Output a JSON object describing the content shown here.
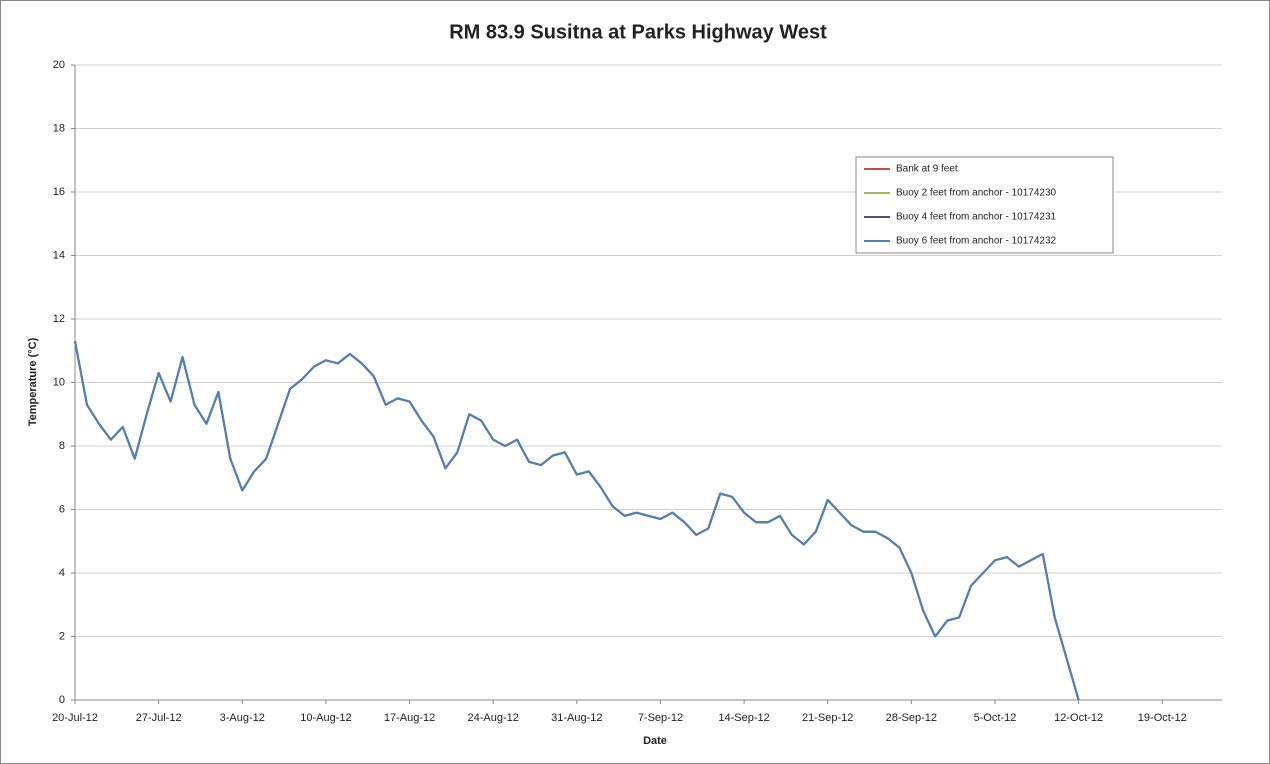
{
  "chart_data": {
    "type": "line",
    "title": "RM 83.9 Susitna at Parks Highway West",
    "xlabel": "Date",
    "ylabel": "Temperature (°C)",
    "x": [
      "2012-07-20",
      "2012-07-21",
      "2012-07-22",
      "2012-07-23",
      "2012-07-24",
      "2012-07-25",
      "2012-07-26",
      "2012-07-27",
      "2012-07-28",
      "2012-07-29",
      "2012-07-30",
      "2012-07-31",
      "2012-08-01",
      "2012-08-02",
      "2012-08-03",
      "2012-08-04",
      "2012-08-05",
      "2012-08-06",
      "2012-08-07",
      "2012-08-08",
      "2012-08-09",
      "2012-08-10",
      "2012-08-11",
      "2012-08-12",
      "2012-08-13",
      "2012-08-14",
      "2012-08-15",
      "2012-08-16",
      "2012-08-17",
      "2012-08-18",
      "2012-08-19",
      "2012-08-20",
      "2012-08-21",
      "2012-08-22",
      "2012-08-23",
      "2012-08-24",
      "2012-08-25",
      "2012-08-26",
      "2012-08-27",
      "2012-08-28",
      "2012-08-29",
      "2012-08-30",
      "2012-08-31",
      "2012-09-01",
      "2012-09-02",
      "2012-09-03",
      "2012-09-04",
      "2012-09-05",
      "2012-09-06",
      "2012-09-07",
      "2012-09-08",
      "2012-09-09",
      "2012-09-10",
      "2012-09-11",
      "2012-09-12",
      "2012-09-13",
      "2012-09-14",
      "2012-09-15",
      "2012-09-16",
      "2012-09-17",
      "2012-09-18",
      "2012-09-19",
      "2012-09-20",
      "2012-09-21",
      "2012-09-22",
      "2012-09-23",
      "2012-09-24",
      "2012-09-25",
      "2012-09-26",
      "2012-09-27",
      "2012-09-28",
      "2012-09-29",
      "2012-09-30",
      "2012-10-01",
      "2012-10-02",
      "2012-10-03",
      "2012-10-04",
      "2012-10-05",
      "2012-10-06",
      "2012-10-07",
      "2012-10-08",
      "2012-10-09",
      "2012-10-10",
      "2012-10-11",
      "2012-10-12"
    ],
    "series": [
      {
        "name": "Bank at 9 feet",
        "color": "#c0504d",
        "values": [
          11.3,
          9.3,
          8.7,
          8.2,
          8.6,
          7.6,
          9.0,
          10.3,
          9.4,
          10.8,
          9.3,
          8.7,
          9.7,
          7.6,
          6.6,
          7.2,
          7.6,
          8.7,
          9.8,
          10.1,
          10.5,
          10.7,
          10.6,
          10.9,
          10.6,
          10.2,
          9.3,
          9.5,
          9.4,
          8.8,
          8.3,
          7.3,
          7.8,
          9.0,
          8.8,
          8.2,
          8.0,
          8.2,
          7.5,
          7.4,
          7.7,
          7.8,
          7.1,
          7.2,
          6.7,
          6.1,
          5.8,
          5.9,
          5.8,
          5.7,
          5.9,
          5.6,
          5.2,
          5.4,
          6.5,
          6.4,
          5.9,
          5.6,
          5.6,
          5.8,
          5.2,
          4.9,
          5.3,
          6.3,
          5.9,
          5.5,
          5.3,
          5.3,
          5.1,
          4.8,
          4.0,
          2.8,
          2.0,
          2.5,
          2.6,
          3.6,
          4.0,
          4.4,
          4.5,
          4.2,
          4.4,
          4.6,
          2.6,
          1.3,
          0.0
        ]
      },
      {
        "name": "Buoy 2 feet from anchor - 10174230",
        "color": "#9bbb59",
        "values": [
          11.3,
          9.3,
          8.7,
          8.2,
          8.6,
          7.6,
          9.0,
          10.3,
          9.4,
          10.8,
          9.3,
          8.7,
          9.7,
          7.6,
          6.6,
          7.2,
          7.6,
          8.7,
          9.8,
          10.1,
          10.5,
          10.7,
          10.6,
          10.9,
          10.6,
          10.2,
          9.3,
          9.5,
          9.4,
          8.8,
          8.3,
          7.3,
          7.8,
          9.0,
          8.8,
          8.2,
          8.0,
          8.2,
          7.5,
          7.4,
          7.7,
          7.8,
          7.1,
          7.2,
          6.7,
          6.1,
          5.8,
          5.9,
          5.8,
          5.7,
          5.9,
          5.6,
          5.2,
          5.4,
          6.5,
          6.4,
          5.9,
          5.6,
          5.6,
          5.8,
          5.2,
          4.9,
          5.3,
          6.3,
          5.9,
          5.5,
          5.3,
          5.3,
          5.1,
          4.8,
          4.0,
          2.8,
          2.0,
          2.5,
          2.6,
          3.6,
          4.0,
          4.4,
          4.5,
          4.2,
          4.4,
          4.6,
          2.6,
          1.3,
          0.0
        ]
      },
      {
        "name": "Buoy 4 feet from anchor - 10174231",
        "color": "#5b4b78",
        "values": [
          11.3,
          9.3,
          8.7,
          8.2,
          8.6,
          7.6,
          9.0,
          10.3,
          9.4,
          10.8,
          9.3,
          8.7,
          9.7,
          7.6,
          6.6,
          7.2,
          7.6,
          8.7,
          9.8,
          10.1,
          10.5,
          10.7,
          10.6,
          10.9,
          10.6,
          10.2,
          9.3,
          9.5,
          9.4,
          8.8,
          8.3,
          7.3,
          7.8,
          9.0,
          8.8,
          8.2,
          8.0,
          8.2,
          7.5,
          7.4,
          7.7,
          7.8,
          7.1,
          7.2,
          6.7,
          6.1,
          5.8,
          5.9,
          5.8,
          5.7,
          5.9,
          5.6,
          5.2,
          5.4,
          6.5,
          6.4,
          5.9,
          5.6,
          5.6,
          5.8,
          5.2,
          4.9,
          5.3,
          6.3,
          5.9,
          5.5,
          5.3,
          5.3,
          5.1,
          4.8,
          4.0,
          2.8,
          2.0,
          2.5,
          2.6,
          3.6,
          4.0,
          4.4,
          4.5,
          4.2,
          4.4,
          4.6,
          2.6,
          1.3,
          0.0
        ]
      },
      {
        "name": "Buoy 6 feet from anchor - 10174232",
        "color": "#4f81bd",
        "values": [
          11.3,
          9.3,
          8.7,
          8.2,
          8.6,
          7.6,
          9.0,
          10.3,
          9.4,
          10.8,
          9.3,
          8.7,
          9.7,
          7.6,
          6.6,
          7.2,
          7.6,
          8.7,
          9.8,
          10.1,
          10.5,
          10.7,
          10.6,
          10.9,
          10.6,
          10.2,
          9.3,
          9.5,
          9.4,
          8.8,
          8.3,
          7.3,
          7.8,
          9.0,
          8.8,
          8.2,
          8.0,
          8.2,
          7.5,
          7.4,
          7.7,
          7.8,
          7.1,
          7.2,
          6.7,
          6.1,
          5.8,
          5.9,
          5.8,
          5.7,
          5.9,
          5.6,
          5.2,
          5.4,
          6.5,
          6.4,
          5.9,
          5.6,
          5.6,
          5.8,
          5.2,
          4.9,
          5.3,
          6.3,
          5.9,
          5.5,
          5.3,
          5.3,
          5.1,
          4.8,
          4.0,
          2.8,
          2.0,
          2.5,
          2.6,
          3.6,
          4.0,
          4.4,
          4.5,
          4.2,
          4.4,
          4.6,
          2.6,
          1.3,
          0.0
        ]
      }
    ],
    "xlim": [
      "2012-07-20",
      "2012-10-24"
    ],
    "xticks": [
      {
        "value": "2012-07-20",
        "label": "20-Jul-12"
      },
      {
        "value": "2012-07-27",
        "label": "27-Jul-12"
      },
      {
        "value": "2012-08-03",
        "label": "3-Aug-12"
      },
      {
        "value": "2012-08-10",
        "label": "10-Aug-12"
      },
      {
        "value": "2012-08-17",
        "label": "17-Aug-12"
      },
      {
        "value": "2012-08-24",
        "label": "24-Aug-12"
      },
      {
        "value": "2012-08-31",
        "label": "31-Aug-12"
      },
      {
        "value": "2012-09-07",
        "label": "7-Sep-12"
      },
      {
        "value": "2012-09-14",
        "label": "14-Sep-12"
      },
      {
        "value": "2012-09-21",
        "label": "21-Sep-12"
      },
      {
        "value": "2012-09-28",
        "label": "28-Sep-12"
      },
      {
        "value": "2012-10-05",
        "label": "5-Oct-12"
      },
      {
        "value": "2012-10-12",
        "label": "12-Oct-12"
      },
      {
        "value": "2012-10-19",
        "label": "19-Oct-12"
      }
    ],
    "ylim": [
      0,
      20
    ],
    "yticks": [
      0,
      2,
      4,
      6,
      8,
      10,
      12,
      14,
      16,
      18,
      20
    ],
    "grid": true,
    "legend": "upper right"
  }
}
